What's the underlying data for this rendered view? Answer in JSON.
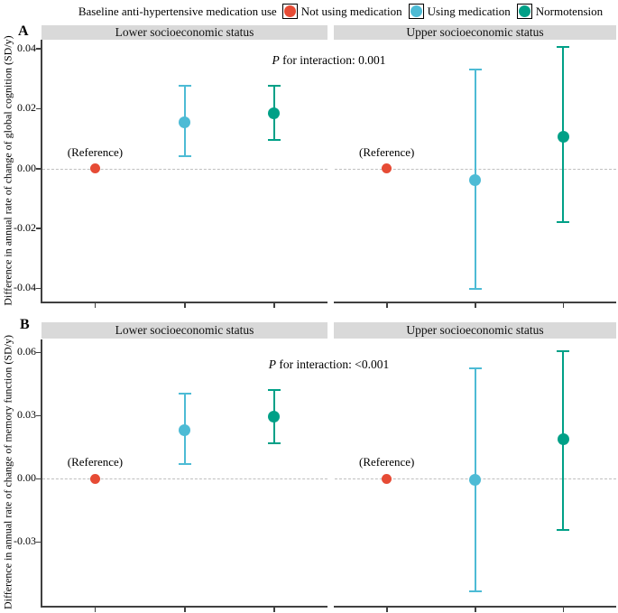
{
  "legend": {
    "title": "Baseline anti-hypertensive medication use",
    "items": [
      {
        "label": "Not using medication",
        "color": "#E64B35"
      },
      {
        "label": "Using medication",
        "color": "#4DBBD5"
      },
      {
        "label": "Normotension",
        "color": "#00A087"
      }
    ]
  },
  "reference_label": "(Reference)",
  "colors": {
    "not_using_medication": "#E64B35",
    "using_medication": "#4DBBD5",
    "normotension": "#00A087",
    "strip_background": "#D9D9D9",
    "zero_line": "#BFBFBF",
    "axis": "#404040"
  },
  "chart_data": [
    {
      "type": "pointrange",
      "panel": "A",
      "ylabel": "Difference in annual rate of change of global cognition (SD/y)",
      "annotation": "P for interaction: 0.001",
      "categories": [
        "Not using medication",
        "Using medication",
        "Normotension"
      ],
      "ylim": [
        -0.0444,
        0.0429
      ],
      "yticks": [
        0.04,
        0.02,
        0,
        -0.02,
        -0.04
      ],
      "grid": false,
      "zero_dashed_line": true,
      "legend_position": "top",
      "facets": [
        {
          "label": "Lower socioeconomic status",
          "points": [
            {
              "group": "Not using medication",
              "color": "#E64B35",
              "value": 0,
              "ci_low": null,
              "ci_high": null,
              "reference": true
            },
            {
              "group": "Using medication",
              "color": "#4DBBD5",
              "value": 0.0155,
              "ci_low": 0.004,
              "ci_high": 0.0275,
              "reference": false
            },
            {
              "group": "Normotension",
              "color": "#00A087",
              "value": 0.0185,
              "ci_low": 0.0095,
              "ci_high": 0.0275,
              "reference": false
            }
          ]
        },
        {
          "label": "Upper socioeconomic status",
          "points": [
            {
              "group": "Not using medication",
              "color": "#E64B35",
              "value": 0,
              "ci_low": null,
              "ci_high": null,
              "reference": true
            },
            {
              "group": "Using medication",
              "color": "#4DBBD5",
              "value": -0.004,
              "ci_low": -0.0403,
              "ci_high": 0.033,
              "reference": false
            },
            {
              "group": "Normotension",
              "color": "#00A087",
              "value": 0.0105,
              "ci_low": -0.018,
              "ci_high": 0.0405,
              "reference": false
            }
          ]
        }
      ]
    },
    {
      "type": "pointrange",
      "panel": "B",
      "ylabel": "Difference in annual rate of change of memory function (SD/y)",
      "annotation": "P for interaction: <0.001",
      "categories": [
        "Not using medication",
        "Using medication",
        "Normotension"
      ],
      "ylim": [
        -0.0604,
        0.066
      ],
      "yticks": [
        0.06,
        0.03,
        0,
        -0.03
      ],
      "grid": false,
      "zero_dashed_line": true,
      "legend_position": "top",
      "facets": [
        {
          "label": "Lower socioeconomic status",
          "points": [
            {
              "group": "Not using medication",
              "color": "#E64B35",
              "value": 0,
              "ci_low": null,
              "ci_high": null,
              "reference": true
            },
            {
              "group": "Using medication",
              "color": "#4DBBD5",
              "value": 0.023,
              "ci_low": 0.0068,
              "ci_high": 0.0402,
              "reference": false
            },
            {
              "group": "Normotension",
              "color": "#00A087",
              "value": 0.0293,
              "ci_low": 0.0168,
              "ci_high": 0.0422,
              "reference": false
            }
          ]
        },
        {
          "label": "Upper socioeconomic status",
          "points": [
            {
              "group": "Not using medication",
              "color": "#E64B35",
              "value": 0,
              "ci_low": null,
              "ci_high": null,
              "reference": true
            },
            {
              "group": "Using medication",
              "color": "#4DBBD5",
              "value": -0.0005,
              "ci_low": -0.0537,
              "ci_high": 0.0522,
              "reference": false
            },
            {
              "group": "Normotension",
              "color": "#00A087",
              "value": 0.0185,
              "ci_low": -0.0243,
              "ci_high": 0.0605,
              "reference": false
            }
          ]
        }
      ]
    }
  ]
}
